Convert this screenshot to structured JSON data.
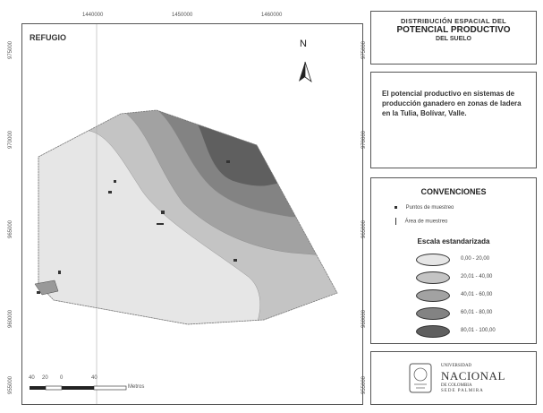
{
  "map": {
    "area_label": "REFUGIO",
    "north_label": "N",
    "top_coords": [
      "1440000",
      "1450000",
      "1460000"
    ],
    "left_coords": [
      "975000",
      "970000",
      "965000",
      "960000",
      "955000"
    ],
    "right_coords": [
      "975000",
      "970000",
      "965000",
      "960000",
      "955000"
    ],
    "scale_labels": [
      "40",
      "20",
      "0",
      "40"
    ],
    "scale_unit": "Metros",
    "zone_colors": [
      "#e6e6e6",
      "#c4c4c4",
      "#a2a2a2",
      "#838383",
      "#5f5f5f"
    ]
  },
  "title": {
    "line1": "DISTRIBUCIÓN ESPACIAL DEL",
    "line2": "POTENCIAL PRODUCTIVO",
    "line3": "DEL SUELO"
  },
  "description": {
    "text": "El potencial productivo en sistemas de producción ganadero en zonas de ladera en la Tulia, Bolívar, Valle."
  },
  "legend": {
    "title": "CONVENCIONES",
    "point_label": "Puntos de muestreo",
    "area_label": "Área de muestreo",
    "subtitle": "Escala estandarizada",
    "classes": [
      {
        "label": "0,00 - 20,00",
        "color": "#e6e6e6"
      },
      {
        "label": "20,01 - 40,00",
        "color": "#c4c4c4"
      },
      {
        "label": "40,01 - 60,00",
        "color": "#a2a2a2"
      },
      {
        "label": "60,01 - 80,00",
        "color": "#838383"
      },
      {
        "label": "80,01 - 100,00",
        "color": "#5f5f5f"
      }
    ]
  },
  "logo": {
    "line1": "UNIVERSIDAD",
    "line2": "NACIONAL",
    "line3": "DE COLOMBIA",
    "line4": "SEDE PALMIRA"
  }
}
